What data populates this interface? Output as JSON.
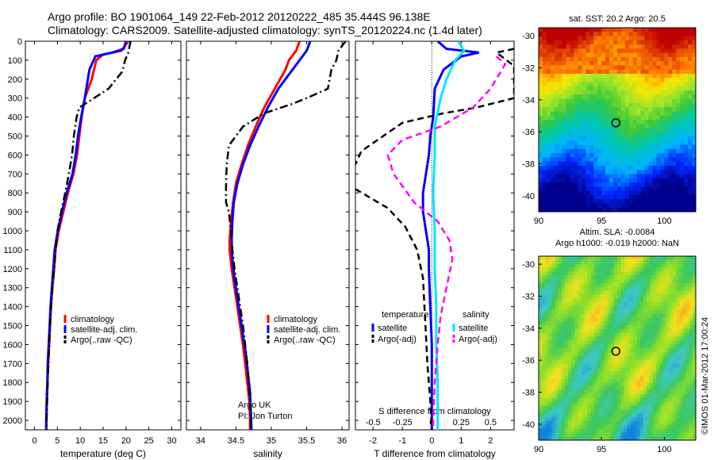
{
  "header": {
    "line1": "Argo profile: BO 1901064_149 22-Feb-2012 20120222_485 35.444S 96.138E",
    "line2": "Climatology: CARS2009. Satellite-adjusted climatology: synTS_20120224.nc (1.4d later)"
  },
  "colors": {
    "climatology": "#ff0000",
    "satellite_adj": "#0000ff",
    "argo": "#000000",
    "sal_satellite": "#00e5ff",
    "sal_argo": "#ff00ff"
  },
  "chart_data": [
    {
      "type": "line",
      "xlabel": "temperature (deg C)",
      "xlim": [
        -2,
        32
      ],
      "xticks": [
        0,
        5,
        10,
        15,
        20,
        25,
        30
      ],
      "ylim": [
        2050,
        0
      ],
      "yticks": [
        0,
        100,
        200,
        300,
        400,
        500,
        600,
        700,
        800,
        900,
        1000,
        1100,
        1200,
        1300,
        1400,
        1500,
        1600,
        1700,
        1800,
        1900,
        2000
      ],
      "legend": [
        "climatology",
        "satellite-adj. clim.",
        "Argo(..raw -QC)"
      ],
      "series": [
        {
          "name": "climatology",
          "style": "solid",
          "color": "#ff0000",
          "points": [
            [
              20.5,
              0
            ],
            [
              19,
              50
            ],
            [
              15,
              70
            ],
            [
              13.5,
              100
            ],
            [
              12.5,
              200
            ],
            [
              11,
              300
            ],
            [
              10.3,
              400
            ],
            [
              9.8,
              500
            ],
            [
              9.3,
              600
            ],
            [
              8.5,
              700
            ],
            [
              7.3,
              800
            ],
            [
              6.3,
              900
            ],
            [
              5.3,
              1000
            ],
            [
              4.6,
              1100
            ],
            [
              4.3,
              1200
            ],
            [
              3.9,
              1300
            ],
            [
              3.6,
              1400
            ],
            [
              3.4,
              1500
            ],
            [
              3.2,
              1600
            ],
            [
              3.0,
              1700
            ],
            [
              2.8,
              1800
            ],
            [
              2.7,
              1900
            ],
            [
              2.6,
              2000
            ],
            [
              2.6,
              2050
            ]
          ]
        },
        {
          "name": "satellite-adj. clim.",
          "style": "solid",
          "color": "#0000ff",
          "points": [
            [
              20,
              0
            ],
            [
              19.5,
              40
            ],
            [
              17,
              60
            ],
            [
              13.3,
              80
            ],
            [
              12,
              150
            ],
            [
              11,
              300
            ],
            [
              10.2,
              400
            ],
            [
              9.5,
              500
            ],
            [
              9,
              600
            ],
            [
              8.3,
              700
            ],
            [
              7,
              800
            ],
            [
              6,
              900
            ],
            [
              5.1,
              1000
            ],
            [
              4.4,
              1100
            ],
            [
              4.1,
              1200
            ],
            [
              3.8,
              1300
            ],
            [
              3.5,
              1400
            ],
            [
              3.3,
              1500
            ],
            [
              3.1,
              1600
            ],
            [
              2.9,
              1700
            ],
            [
              2.8,
              1800
            ],
            [
              2.65,
              1900
            ],
            [
              2.55,
              2000
            ],
            [
              2.55,
              2050
            ]
          ]
        },
        {
          "name": "Argo(..raw -QC)",
          "style": "dashdot",
          "color": "#000000",
          "points": [
            [
              21,
              0
            ],
            [
              20.5,
              60
            ],
            [
              19.8,
              100
            ],
            [
              19.2,
              160
            ],
            [
              16.2,
              250
            ],
            [
              13,
              300
            ],
            [
              9.8,
              350
            ],
            [
              9.2,
              400
            ],
            [
              8.6,
              500
            ],
            [
              8.2,
              600
            ],
            [
              7.5,
              700
            ],
            [
              6.7,
              800
            ],
            [
              5.8,
              900
            ],
            [
              5,
              1000
            ],
            [
              4.6,
              1100
            ],
            [
              4.3,
              1200
            ],
            [
              3.9,
              1300
            ],
            [
              3.6,
              1400
            ],
            [
              3.4,
              1500
            ],
            [
              3.2,
              1600
            ],
            [
              3.0,
              1700
            ],
            [
              2.9,
              1800
            ],
            [
              2.75,
              1900
            ],
            [
              2.65,
              2000
            ],
            [
              2.6,
              2050
            ]
          ]
        }
      ]
    },
    {
      "type": "line",
      "xlabel": "salinity",
      "xlim": [
        33.8,
        36.1
      ],
      "xticks": [
        34,
        34.5,
        35,
        35.5,
        36
      ],
      "xticklabels": [
        "34",
        "34.5",
        "35",
        "35.5",
        "36"
      ],
      "ylim": [
        2050,
        0
      ],
      "legend": [
        "climatology",
        "satellite-adj. clim.",
        "Argo(..raw -QC)"
      ],
      "annotation": [
        "Argo UK",
        "PI: Jon Turton"
      ],
      "series": [
        {
          "name": "climatology",
          "style": "solid",
          "color": "#ff0000",
          "points": [
            [
              35.4,
              0
            ],
            [
              35.35,
              50
            ],
            [
              35.25,
              100
            ],
            [
              35.2,
              150
            ],
            [
              35.05,
              250
            ],
            [
              34.9,
              350
            ],
            [
              34.78,
              450
            ],
            [
              34.67,
              550
            ],
            [
              34.58,
              650
            ],
            [
              34.5,
              750
            ],
            [
              34.46,
              850
            ],
            [
              34.43,
              950
            ],
            [
              34.41,
              1050
            ],
            [
              34.41,
              1100
            ],
            [
              34.44,
              1200
            ],
            [
              34.48,
              1300
            ],
            [
              34.52,
              1400
            ],
            [
              34.56,
              1500
            ],
            [
              34.6,
              1600
            ],
            [
              34.63,
              1700
            ],
            [
              34.66,
              1800
            ],
            [
              34.69,
              1900
            ],
            [
              34.7,
              2000
            ],
            [
              34.7,
              2050
            ]
          ]
        },
        {
          "name": "satellite-adj. clim.",
          "style": "solid",
          "color": "#0000ff",
          "points": [
            [
              35.55,
              0
            ],
            [
              35.5,
              50
            ],
            [
              35.4,
              100
            ],
            [
              35.3,
              150
            ],
            [
              35.1,
              250
            ],
            [
              34.95,
              350
            ],
            [
              34.82,
              450
            ],
            [
              34.7,
              550
            ],
            [
              34.6,
              650
            ],
            [
              34.52,
              750
            ],
            [
              34.47,
              850
            ],
            [
              34.45,
              950
            ],
            [
              34.44,
              1050
            ],
            [
              34.45,
              1150
            ],
            [
              34.48,
              1250
            ],
            [
              34.52,
              1350
            ],
            [
              34.56,
              1450
            ],
            [
              34.6,
              1550
            ],
            [
              34.64,
              1650
            ],
            [
              34.67,
              1750
            ],
            [
              34.7,
              1850
            ],
            [
              34.71,
              1950
            ],
            [
              34.72,
              2050
            ]
          ]
        },
        {
          "name": "Argo(..raw -QC)",
          "style": "dashdot",
          "color": "#000000",
          "points": [
            [
              36.05,
              0
            ],
            [
              35.95,
              50
            ],
            [
              35.92,
              100
            ],
            [
              35.85,
              150
            ],
            [
              35.8,
              250
            ],
            [
              35.5,
              300
            ],
            [
              35.3,
              330
            ],
            [
              34.9,
              380
            ],
            [
              34.6,
              450
            ],
            [
              34.4,
              550
            ],
            [
              34.37,
              650
            ],
            [
              34.36,
              750
            ],
            [
              34.36,
              850
            ],
            [
              34.4,
              900
            ],
            [
              34.43,
              1000
            ],
            [
              34.45,
              1100
            ],
            [
              34.48,
              1200
            ],
            [
              34.52,
              1300
            ],
            [
              34.56,
              1400
            ],
            [
              34.6,
              1500
            ],
            [
              34.63,
              1600
            ],
            [
              34.66,
              1700
            ],
            [
              34.68,
              1800
            ],
            [
              34.7,
              1900
            ],
            [
              34.71,
              2000
            ],
            [
              34.71,
              2050
            ]
          ]
        }
      ]
    },
    {
      "type": "line",
      "xlabel": "T difference from climatology",
      "xlabel_top": "S difference from climatology",
      "xlim": [
        -2.6,
        2.8
      ],
      "xticks": [
        -2,
        -1,
        0,
        1,
        2
      ],
      "top_axis_ticks": [
        "-0.5",
        "-0.25",
        "0",
        "0.25",
        "0.5"
      ],
      "top_axis_positions": [
        -2,
        -1,
        0,
        1,
        2
      ],
      "ylim": [
        2050,
        0
      ],
      "legend_headers": [
        "temperature",
        "salinity"
      ],
      "legend": [
        "satellite",
        "Argo(-adj)",
        "satellite",
        "Argo(-adj)"
      ],
      "series": [
        {
          "name": "temperature satellite",
          "style": "solid",
          "color": "#0000ff",
          "points": [
            [
              0.2,
              0
            ],
            [
              0.5,
              40
            ],
            [
              1.6,
              60
            ],
            [
              1.0,
              80
            ],
            [
              0.4,
              150
            ],
            [
              0.1,
              250
            ],
            [
              0.05,
              400
            ],
            [
              -0.05,
              500
            ],
            [
              -0.1,
              600
            ],
            [
              -0.2,
              700
            ],
            [
              -0.3,
              800
            ],
            [
              -0.3,
              900
            ],
            [
              -0.2,
              1000
            ],
            [
              -0.1,
              1100
            ],
            [
              -0.1,
              1200
            ],
            [
              -0.05,
              1400
            ],
            [
              0,
              1600
            ],
            [
              0,
              2050
            ]
          ]
        },
        {
          "name": "temperature Argo(-adj)",
          "style": "dashed",
          "color": "#000000",
          "points": [
            [
              2.8,
              40
            ],
            [
              2.2,
              60
            ],
            [
              2.8,
              130
            ],
            [
              2.8,
              300
            ],
            [
              1.5,
              350
            ],
            [
              0.4,
              380
            ],
            [
              -1,
              430
            ],
            [
              -2.4,
              580
            ],
            [
              -2.6,
              650
            ]
          ]
        },
        {
          "name": "temperature Argo(-adj) lower",
          "style": "dashed",
          "color": "#000000",
          "points": [
            [
              -2.6,
              780
            ],
            [
              -1.5,
              880
            ],
            [
              -0.9,
              980
            ],
            [
              -0.5,
              1100
            ],
            [
              -0.3,
              1250
            ],
            [
              -0.25,
              1400
            ],
            [
              -0.2,
              1550
            ],
            [
              -0.15,
              1700
            ],
            [
              -0.1,
              1800
            ],
            [
              -0.05,
              1900
            ],
            [
              0,
              2050
            ]
          ]
        },
        {
          "name": "salinity satellite",
          "style": "solid",
          "color": "#00e5ff",
          "points": [
            [
              0.9,
              0
            ],
            [
              1.1,
              50
            ],
            [
              0.8,
              100
            ],
            [
              0.5,
              200
            ],
            [
              0.3,
              300
            ],
            [
              0.1,
              450
            ],
            [
              0.1,
              600
            ],
            [
              0.05,
              800
            ],
            [
              0.1,
              1000
            ],
            [
              0.1,
              1200
            ],
            [
              0.15,
              1400
            ],
            [
              0.15,
              1600
            ],
            [
              0.2,
              1800
            ],
            [
              0.2,
              2050
            ]
          ]
        },
        {
          "name": "salinity Argo(-adj)",
          "style": "dashed",
          "color": "#ff00ff",
          "points": [
            [
              2.2,
              80
            ],
            [
              2.5,
              120
            ],
            [
              2.0,
              250
            ],
            [
              1.4,
              350
            ],
            [
              0.3,
              450
            ],
            [
              -1,
              520
            ],
            [
              -1.5,
              600
            ],
            [
              -1.3,
              700
            ],
            [
              -0.6,
              850
            ],
            [
              0.2,
              950
            ],
            [
              0.6,
              1050
            ],
            [
              0.7,
              1150
            ],
            [
              0.5,
              1300
            ],
            [
              0.3,
              1450
            ],
            [
              0.2,
              1600
            ],
            [
              0.1,
              1800
            ],
            [
              0.05,
              2000
            ],
            [
              0.05,
              2050
            ]
          ]
        }
      ]
    },
    {
      "type": "heatmap",
      "title": "sat. SST: 20.2 Argo: 20.5",
      "xticks": [
        90,
        95,
        100
      ],
      "yticks": [
        -30,
        -32,
        -34,
        -36,
        -38,
        -40
      ],
      "xlim": [
        90,
        102.5
      ],
      "ylim": [
        -41,
        -29.5
      ],
      "marker": {
        "lon": 96.14,
        "lat": -35.44
      }
    },
    {
      "type": "heatmap",
      "title": "Altim. SLA: -0.0084",
      "subtitle": "Argo h1000: -0.019 h2000: NaN",
      "xticks": [
        90,
        95,
        100
      ],
      "yticks": [
        -30,
        -32,
        -34,
        -36,
        -38,
        -40
      ],
      "xlim": [
        90,
        102.5
      ],
      "ylim": [
        -41,
        -29.5
      ],
      "marker": {
        "lon": 96.14,
        "lat": -35.44
      }
    }
  ],
  "credit": "©IMOS 01-Mar-2012 17:00:24"
}
